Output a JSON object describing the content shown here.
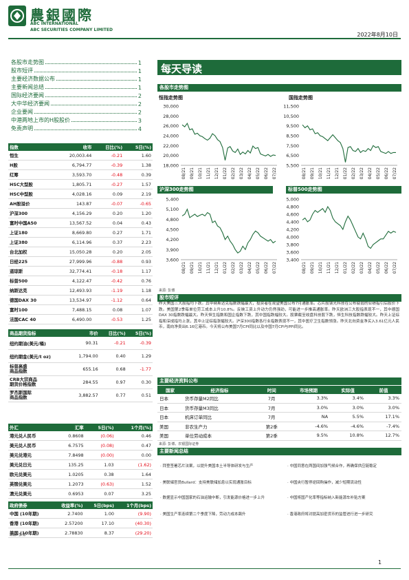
{
  "header": {
    "brand_cn": "農銀國際",
    "brand_en1": "ABC INTERNATIONAL",
    "brand_en2": "ABC SECURITIES COMPANY LIMITED",
    "date": "2022年8月10日"
  },
  "toc": [
    {
      "label": "各股市走势图",
      "page": "1"
    },
    {
      "label": "股市短评",
      "page": "1"
    },
    {
      "label": "主要经济数据公布",
      "page": "1"
    },
    {
      "label": "主要新闻总结",
      "page": "1"
    },
    {
      "label": "国际经济要闻",
      "page": "2"
    },
    {
      "label": "大中华经济要闻",
      "page": "2"
    },
    {
      "label": "企业要闻",
      "page": "2"
    },
    {
      "label": "中港两地上市的H股股价",
      "page": "3"
    },
    {
      "label": "免责声明",
      "page": "4"
    }
  ],
  "indices": {
    "headers": [
      "指数",
      "收市",
      "日比(%)",
      "5日(%)"
    ],
    "rows": [
      [
        "恒生",
        "20,003.44",
        "-0.21",
        "1.60"
      ],
      [
        "H股",
        "6,794.77",
        "-0.39",
        "1.38"
      ],
      [
        "红筹",
        "3,593.70",
        "-0.48",
        "0.39"
      ],
      [
        "HSC大型股",
        "1,805.71",
        "-0.27",
        "1.57"
      ],
      [
        "HSC中型股",
        "4,028.16",
        "0.09",
        "2.19"
      ],
      [
        "AH股溢价",
        "143.87",
        "-0.07",
        "-0.65"
      ],
      [
        "沪深300",
        "4,156.29",
        "0.20",
        "1.20"
      ],
      [
        "富时中国A50",
        "13,567.52",
        "0.04",
        "0.43"
      ],
      [
        "上证180",
        "8,669.80",
        "0.27",
        "1.71"
      ],
      [
        "上证380",
        "6,114.96",
        "0.37",
        "2.23"
      ],
      [
        "台北加权",
        "15,050.28",
        "0.20",
        "2.05"
      ],
      [
        "日经225",
        "27,999.96",
        "-0.88",
        "0.93"
      ],
      [
        "道琼斯",
        "32,774.41",
        "-0.18",
        "1.17"
      ],
      [
        "标普500",
        "4,122.47",
        "-0.42",
        "0.76"
      ],
      [
        "纳斯达克",
        "12,493.93",
        "-1.19",
        "1.18"
      ],
      [
        "德国DAX 30",
        "13,534.97",
        "-1.12",
        "0.64"
      ],
      [
        "富时100",
        "7,488.15",
        "0.08",
        "1.07"
      ],
      [
        "法国CAC 40",
        "6,490.00",
        "-0.53",
        "1.25"
      ]
    ]
  },
  "commodities": {
    "headers": [
      "商品期货指标",
      "市价",
      "日比(%)",
      "5日(%)"
    ],
    "rows": [
      [
        "纽约期油(美元/桶)",
        "90.31",
        "-0.21",
        "-0.39"
      ],
      [
        "纽约期金(美元/t oz)",
        "1,794.00",
        "0.40",
        "1.29"
      ],
      [
        "标普高盛\n商品指数",
        "655.16",
        "0.68",
        "-1.77"
      ],
      [
        "CRB大宗商品\n期货价格指数",
        "284.55",
        "0.97",
        "0.30"
      ],
      [
        "罗杰斯国际\n商品指数",
        "3,882.57",
        "0.77",
        "0.51"
      ]
    ]
  },
  "fx": {
    "headers": [
      "外汇",
      "汇率",
      "5日(%)",
      "1个月(%)"
    ],
    "rows": [
      [
        "港元兑人民币",
        "0.8608",
        "(0.06)",
        "0.46"
      ],
      [
        "美元兑人民币",
        "6.7575",
        "(0.08)",
        "0.47"
      ],
      [
        "美元兑港元",
        "7.8498",
        "(0.00)",
        "0.00"
      ],
      [
        "美元兑日元",
        "135.25",
        "1.03",
        "(1.62)"
      ],
      [
        "欧元兑美元",
        "1.0205",
        "0.38",
        "1.64"
      ],
      [
        "英镑兑美元",
        "1.2073",
        "(0.63)",
        "1.52"
      ],
      [
        "澳元兑美元",
        "0.6953",
        "0.07",
        "3.25"
      ]
    ]
  },
  "bonds": {
    "headers": [
      "政府债券",
      "收益率(%)",
      "5日(bps)",
      "1个月(bps)"
    ],
    "rows": [
      [
        "中国 (10年期)",
        "2.7400",
        "1.00",
        "(9.90)"
      ],
      [
        "香港 (10年期)",
        "2.57200",
        "17.10",
        "(40.30)"
      ],
      [
        "美国 (10年期)",
        "2.78830",
        "8.37",
        "(29.20)"
      ]
    ]
  },
  "source_label": "来源: 彭博",
  "right": {
    "title": "每天导读",
    "charts_section": "各股市走势图",
    "source_charts": "来源: 彭博",
    "commentary_section": "股市短评",
    "commentary": "昨天美国三大股指均下跌。其中纳斯达克指数跌幅最大，投资者在观望美国公布7月通胀率。芯片股镁光科技在公布疲弱的业绩指引后股价下跌。美国第2季每单位劳工成本上升10.8%。反映工资上升动力仍然强劲，可能进一步推高通胀率。昨天欧洲三大股指表现不一，其中德国DAX 30指数跌幅最大。昨天恒生指数和国企指数下跌，其中国指跌幅较大。股票截至收盘科技股下跌，恒生科技指数跌幅较大。昨天上证综指和深成指均上涨，其中上证综指涨幅较大。沪深300指数各行业指数表现不一，其中医疗卫生指数领涨。昨天北向资金净买入3.61亿元人民币，南向净卖出6.16亿港币。今天将公布美国7月CPI同比以及中国7月CPI与PPI同比。",
    "eco_section": "主要经济资料公布",
    "eco_headers": [
      "国家",
      "经济指标",
      "时间",
      "市场预期",
      "实际值",
      "前值"
    ],
    "eco_rows": [
      [
        "日本",
        "货币存量M2同比",
        "7月",
        "3.3%",
        "3.4%",
        "3.3%"
      ],
      [
        "日本",
        "货币存量M3同比",
        "7月",
        "3.0%",
        "3.0%",
        "3.0%"
      ],
      [
        "日本",
        "机床订单同比",
        "7月",
        "NA",
        "5.5%",
        "17.1%"
      ],
      [
        "美国",
        "非农生产力",
        "第2季",
        "-4.6%",
        "-4.6%",
        "-7.4%"
      ],
      [
        "美国",
        "单位劳动成本",
        "第2季",
        "9.5%",
        "10.8%",
        "12.7%"
      ]
    ],
    "eco_source": "来源: 彭博，农银国际证券",
    "news_section": "主要新闻总结",
    "news_left": [
      "· 拜登签署芯片法案，以提升美国本土半导体研发与生产",
      "· 美联储官员Bullard：支持美联储加息以实现通胀目标",
      "· 数据显示中国国家的石油运输中断，引发能源价格进一步上升",
      "· 美国生产率连续第二个季度下降，劳动力成本飙升"
    ],
    "news_right": [
      "· 中国同意在两国间加强气候合作，再确保供应链稳定",
      "· 中国央行暂停逆回购操作，减少短期流动性",
      "· 中国将国产化率等指标纳入新能源车补贴方案",
      "· 香港政府将对提高加密货币的监管进行进一步研究"
    ]
  },
  "footer": {
    "page": "1"
  },
  "chart_data": [
    {
      "type": "line",
      "title": "恒指走势图",
      "x_ticks": [
        "08/21",
        "09/21",
        "10/21",
        "11/21",
        "12/21",
        "01/22",
        "02/22",
        "03/22",
        "04/22",
        "05/22",
        "06/22",
        "07/22"
      ],
      "y_ticks": [
        "30,000",
        "28,000",
        "26,000",
        "24,000",
        "22,000",
        "20,000",
        "18,000"
      ],
      "ylim": [
        18000,
        30000
      ],
      "values": [
        26200,
        25800,
        26500,
        25200,
        25400,
        24300,
        24500,
        24000,
        23800,
        23400,
        23100,
        23500,
        24400,
        24000,
        23200,
        22800,
        21600,
        19000,
        21500,
        21800,
        20900,
        20600,
        21300,
        20200,
        20700,
        20300,
        21000,
        20500,
        21900,
        21400,
        21600,
        20300,
        20100,
        19900,
        20200,
        19800,
        20100,
        20000
      ]
    },
    {
      "type": "line",
      "title": "国指走势图",
      "x_ticks": [
        "08/21",
        "09/21",
        "10/21",
        "11/21",
        "12/21",
        "01/22",
        "02/22",
        "03/22",
        "04/22",
        "05/22",
        "06/22",
        "07/22"
      ],
      "y_ticks": [
        "11,500",
        "10,500",
        "9,500",
        "8,500",
        "7,500",
        "6,500",
        "5,500"
      ],
      "ylim": [
        5500,
        11500
      ],
      "values": [
        9600,
        9300,
        9500,
        9100,
        9200,
        8700,
        8800,
        8500,
        8400,
        8200,
        8000,
        8300,
        8600,
        8300,
        8000,
        7800,
        7200,
        5800,
        7300,
        7400,
        7000,
        6900,
        7200,
        6800,
        7000,
        6900,
        7200,
        7000,
        7500,
        7300,
        7400,
        6900,
        6800,
        6700,
        6900,
        6700,
        6800,
        6800
      ]
    },
    {
      "type": "line",
      "title": "沪深300走势图",
      "x_ticks": [
        "08/21",
        "09/21",
        "10/21",
        "11/21",
        "12/21",
        "01/22",
        "02/22",
        "03/22",
        "04/22",
        "05/22",
        "06/22",
        "07/22"
      ],
      "y_ticks": [
        "5,400",
        "5,100",
        "4,800",
        "4,500",
        "4,200",
        "3,900",
        "3,600"
      ],
      "ylim": [
        3600,
        5400
      ],
      "values": [
        4900,
        4950,
        5100,
        4850,
        4900,
        4950,
        4880,
        4920,
        4950,
        4900,
        5000,
        4950,
        4700,
        4750,
        4600,
        4550,
        4400,
        4200,
        4300,
        4150,
        4050,
        3900,
        3800,
        3850,
        4000,
        3900,
        4100,
        4200,
        4350,
        4450,
        4400,
        4300,
        4250,
        4200,
        4150,
        4200,
        4100,
        4150
      ]
    },
    {
      "type": "line",
      "title": "标普500走势图",
      "x_ticks": [
        "08/21",
        "09/21",
        "10/21",
        "11/21",
        "12/21",
        "01/22",
        "02/22",
        "03/22",
        "04/22",
        "05/22",
        "06/22",
        "07/22"
      ],
      "y_ticks": [
        "5,000",
        "4,800",
        "4,600",
        "4,400",
        "4,200",
        "4,000",
        "3,800",
        "3,600",
        "3,400"
      ],
      "ylim": [
        3400,
        5000
      ],
      "values": [
        4450,
        4500,
        4400,
        4450,
        4600,
        4700,
        4650,
        4700,
        4750,
        4650,
        4800,
        4700,
        4500,
        4400,
        4350,
        4300,
        4200,
        4400,
        4550,
        4450,
        4300,
        4150,
        4000,
        3950,
        4100,
        3950,
        3750,
        3700,
        3800,
        3850,
        3900,
        3950,
        3950,
        4050,
        4150,
        4100,
        4150,
        4120
      ]
    }
  ]
}
